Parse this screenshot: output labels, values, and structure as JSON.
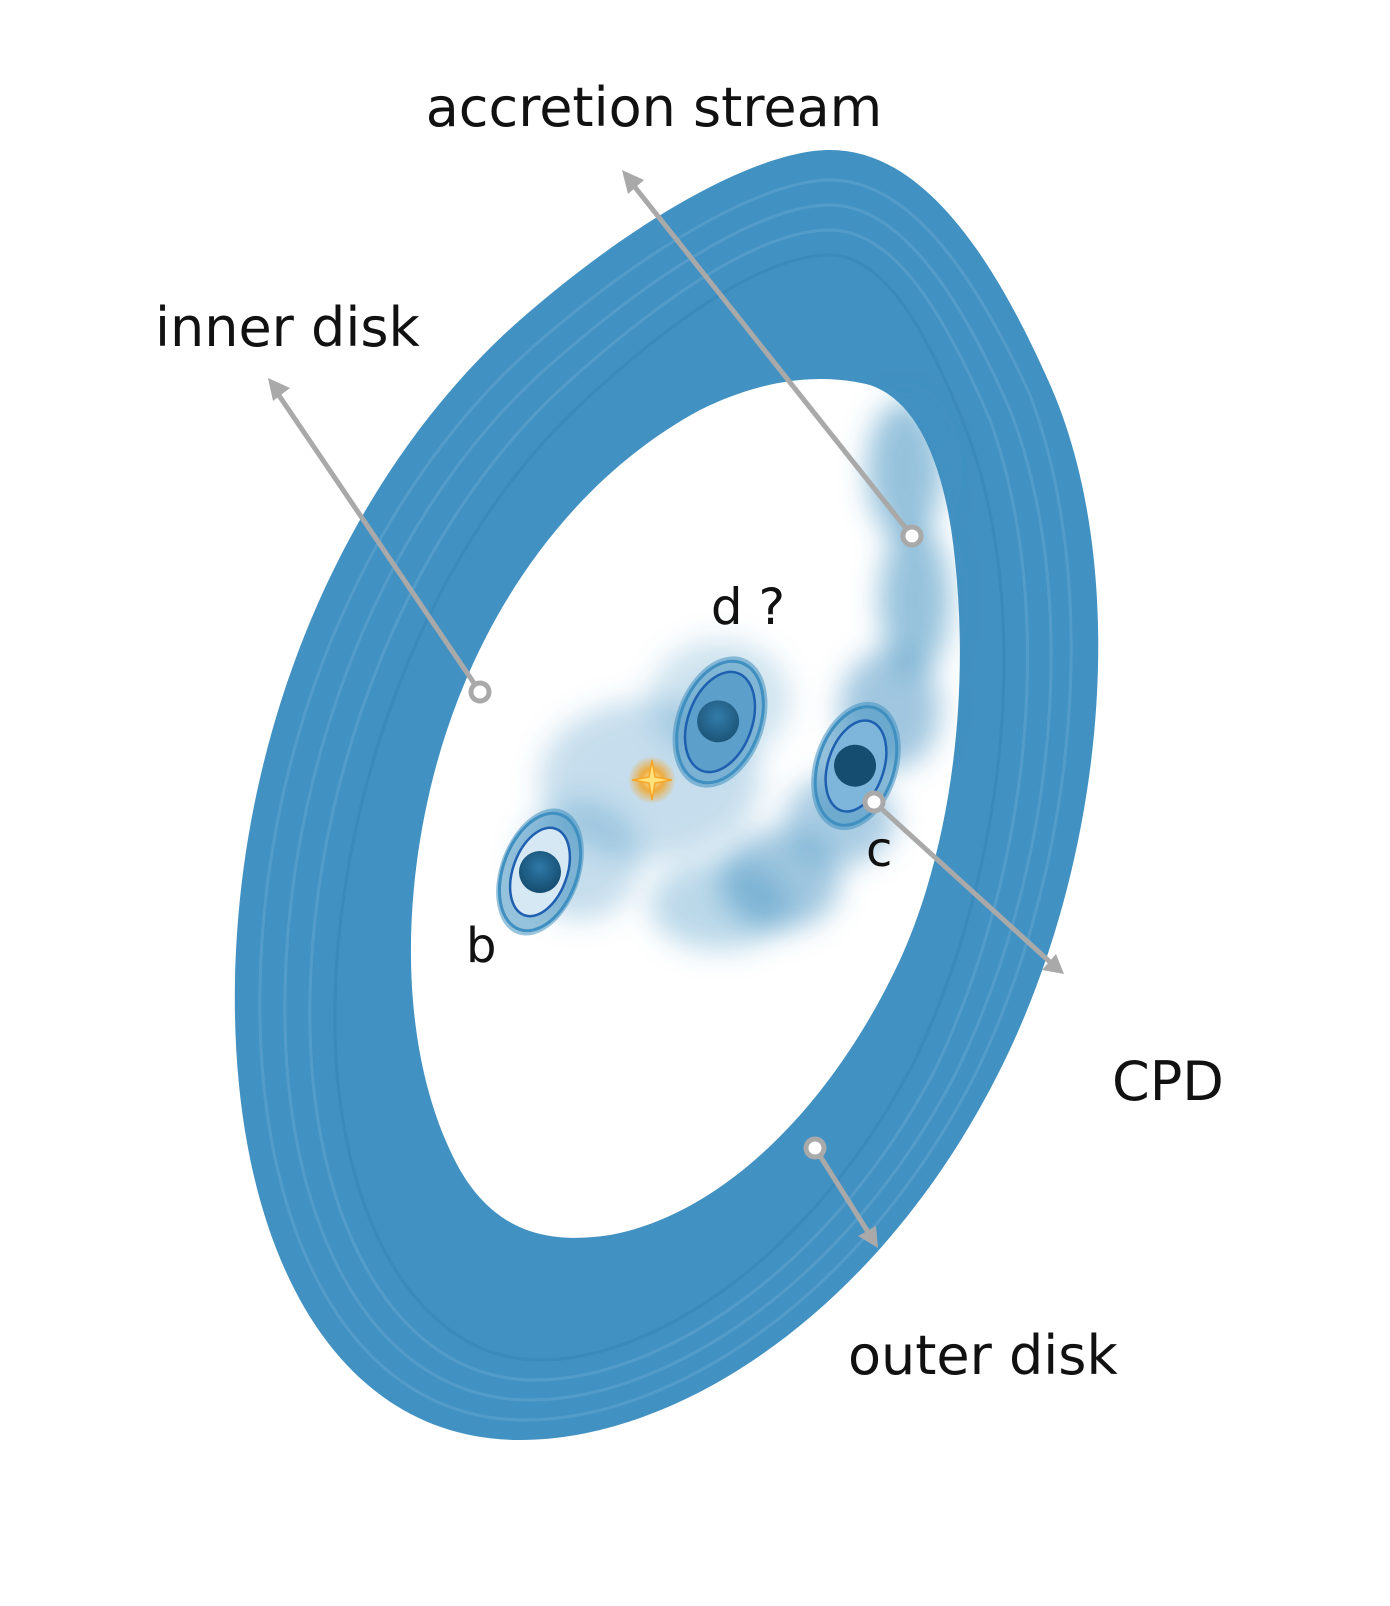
{
  "labels": {
    "accretion_stream": "accretion stream",
    "inner_disk": "inner disk",
    "outer_disk": "outer disk",
    "cpd": "CPD",
    "planet_b": "b",
    "planet_c": "c",
    "planet_d": "d ?"
  },
  "colors": {
    "disk": "#3f8fc0",
    "disk_light": "#5aa0ca",
    "planet_dark": "#1a5a80",
    "planet_outline": "#1f5fb0",
    "arrow": "#a9a9a9",
    "star": "#f3a62a"
  }
}
